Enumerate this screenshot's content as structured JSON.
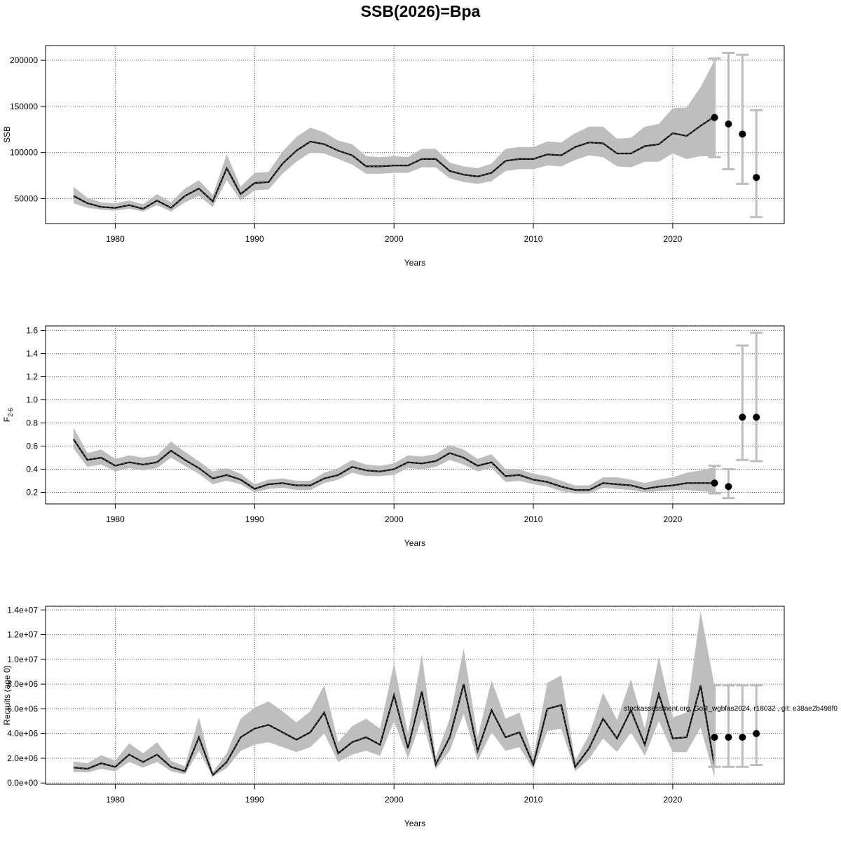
{
  "figure": {
    "title": "SSB(2026)=Bpa",
    "watermark": "stockassessment.org, GoR_wgbfas2024, r18032 , git: e38ae2b498f0"
  },
  "colors": {
    "band": "#bebebe",
    "line": "#000000",
    "grid": "#555555",
    "errorbar": "#bdbdbd"
  },
  "chart_data": [
    {
      "type": "line",
      "ylabel": "SSB",
      "xlabel": "Years",
      "xlim": [
        1975,
        2028
      ],
      "ylim": [
        23000,
        216000
      ],
      "xticks": [
        1980,
        1990,
        2000,
        2010,
        2020
      ],
      "yticks": [
        50000,
        100000,
        150000,
        200000
      ],
      "ytick_labels": [
        "50000",
        "100000",
        "150000",
        "200000"
      ],
      "grid": true,
      "series": [
        {
          "x": [
            1977,
            1978,
            1979,
            1980,
            1981,
            1982,
            1983,
            1984,
            1985,
            1986,
            1987,
            1988,
            1989,
            1990,
            1991,
            1992,
            1993,
            1994,
            1995,
            1996,
            1997,
            1998,
            1999,
            2000,
            2001,
            2002,
            2003,
            2004,
            2005,
            2006,
            2007,
            2008,
            2009,
            2010,
            2011,
            2012,
            2013,
            2014,
            2015,
            2016,
            2017,
            2018,
            2019,
            2020,
            2021,
            2022,
            2023
          ],
          "values": [
            53000,
            45000,
            41000,
            40000,
            43000,
            39000,
            48000,
            40000,
            53000,
            61000,
            47000,
            83000,
            55000,
            67000,
            68000,
            88000,
            102000,
            112000,
            109000,
            102000,
            97000,
            85000,
            85000,
            86000,
            86000,
            93000,
            93000,
            80000,
            76000,
            74000,
            78000,
            91000,
            93000,
            93000,
            98000,
            97000,
            106000,
            111000,
            110000,
            99000,
            99000,
            107000,
            109000,
            121000,
            118000,
            129000,
            139000
          ],
          "lower": [
            45000,
            40000,
            38000,
            37000,
            39000,
            36000,
            43000,
            36000,
            46000,
            53000,
            41000,
            70000,
            48000,
            59000,
            60000,
            77000,
            90000,
            100000,
            99000,
            93000,
            87000,
            77000,
            77000,
            78000,
            78000,
            84000,
            84000,
            72000,
            68000,
            66000,
            69000,
            80000,
            82000,
            82000,
            86000,
            85000,
            92000,
            97000,
            95000,
            85000,
            84000,
            90000,
            90000,
            99000,
            93000,
            96000,
            96000
          ],
          "upper": [
            63000,
            51000,
            46000,
            45000,
            48000,
            44000,
            55000,
            46000,
            61000,
            70000,
            54000,
            98000,
            63000,
            78000,
            79000,
            101000,
            117000,
            127000,
            122000,
            113000,
            109000,
            96000,
            95000,
            96000,
            95000,
            104000,
            104000,
            89000,
            85000,
            83000,
            88000,
            104000,
            106000,
            106000,
            112000,
            111000,
            121000,
            128000,
            128000,
            115000,
            116000,
            128000,
            131000,
            148000,
            149000,
            171000,
            200000
          ]
        }
      ],
      "projections": [
        {
          "x": 2023,
          "value": 138000,
          "lower": 95000,
          "upper": 202000
        },
        {
          "x": 2024,
          "value": 131000,
          "lower": 82000,
          "upper": 208000
        },
        {
          "x": 2025,
          "value": 120000,
          "lower": 66000,
          "upper": 206000
        },
        {
          "x": 2026,
          "value": 73000,
          "lower": 30000,
          "upper": 146000
        }
      ]
    },
    {
      "type": "line",
      "ylabel": "F",
      "ylabel_sub": "2-6",
      "xlabel": "Years",
      "xlim": [
        1975,
        2028
      ],
      "ylim": [
        0.1,
        1.64
      ],
      "xticks": [
        1980,
        1990,
        2000,
        2010,
        2020
      ],
      "yticks": [
        0.2,
        0.4,
        0.6,
        0.8,
        1.0,
        1.2,
        1.4,
        1.6
      ],
      "ytick_labels": [
        "0.2",
        "0.4",
        "0.6",
        "0.8",
        "1.0",
        "1.2",
        "1.4",
        "1.6"
      ],
      "grid": true,
      "series": [
        {
          "x": [
            1977,
            1978,
            1979,
            1980,
            1981,
            1982,
            1983,
            1984,
            1985,
            1986,
            1987,
            1988,
            1989,
            1990,
            1991,
            1992,
            1993,
            1994,
            1995,
            1996,
            1997,
            1998,
            1999,
            2000,
            2001,
            2002,
            2003,
            2004,
            2005,
            2006,
            2007,
            2008,
            2009,
            2010,
            2011,
            2012,
            2013,
            2014,
            2015,
            2016,
            2017,
            2018,
            2019,
            2020,
            2021,
            2022,
            2023
          ],
          "values": [
            0.66,
            0.48,
            0.5,
            0.43,
            0.46,
            0.44,
            0.46,
            0.56,
            0.48,
            0.41,
            0.32,
            0.35,
            0.31,
            0.23,
            0.27,
            0.28,
            0.26,
            0.26,
            0.32,
            0.35,
            0.42,
            0.39,
            0.38,
            0.4,
            0.46,
            0.45,
            0.47,
            0.54,
            0.5,
            0.43,
            0.46,
            0.34,
            0.35,
            0.31,
            0.29,
            0.25,
            0.22,
            0.22,
            0.28,
            0.27,
            0.26,
            0.23,
            0.25,
            0.26,
            0.28,
            0.28,
            0.28
          ],
          "lower": [
            0.58,
            0.42,
            0.44,
            0.38,
            0.41,
            0.39,
            0.41,
            0.5,
            0.43,
            0.36,
            0.27,
            0.3,
            0.27,
            0.2,
            0.23,
            0.24,
            0.22,
            0.22,
            0.28,
            0.31,
            0.37,
            0.34,
            0.34,
            0.35,
            0.41,
            0.4,
            0.42,
            0.48,
            0.44,
            0.38,
            0.41,
            0.29,
            0.3,
            0.27,
            0.25,
            0.21,
            0.19,
            0.19,
            0.24,
            0.23,
            0.22,
            0.2,
            0.21,
            0.22,
            0.22,
            0.21,
            0.2
          ],
          "upper": [
            0.76,
            0.54,
            0.57,
            0.49,
            0.52,
            0.5,
            0.52,
            0.64,
            0.55,
            0.47,
            0.38,
            0.41,
            0.36,
            0.27,
            0.31,
            0.32,
            0.3,
            0.3,
            0.37,
            0.41,
            0.48,
            0.44,
            0.43,
            0.45,
            0.52,
            0.51,
            0.53,
            0.61,
            0.57,
            0.49,
            0.53,
            0.4,
            0.4,
            0.36,
            0.34,
            0.3,
            0.26,
            0.26,
            0.33,
            0.33,
            0.31,
            0.28,
            0.31,
            0.33,
            0.37,
            0.39,
            0.42
          ]
        }
      ],
      "projections": [
        {
          "x": 2023,
          "value": 0.28,
          "lower": 0.19,
          "upper": 0.43
        },
        {
          "x": 2024,
          "value": 0.25,
          "lower": 0.15,
          "upper": 0.4
        },
        {
          "x": 2025,
          "value": 0.85,
          "lower": 0.48,
          "upper": 1.47
        },
        {
          "x": 2026,
          "value": 0.85,
          "lower": 0.47,
          "upper": 1.58
        }
      ]
    },
    {
      "type": "line",
      "ylabel": "Recruits (age 0)",
      "xlabel": "Years",
      "xlim": [
        1975,
        2028
      ],
      "ylim": [
        -100000,
        14300000
      ],
      "xticks": [
        1980,
        1990,
        2000,
        2010,
        2020
      ],
      "yticks": [
        0,
        2000000,
        4000000,
        6000000,
        8000000,
        10000000,
        12000000,
        14000000
      ],
      "ytick_labels": [
        "0.0e+00",
        "2.0e+06",
        "4.0e+06",
        "6.0e+06",
        "8.0e+06",
        "1.0e+07",
        "1.2e+07",
        "1.4e+07"
      ],
      "grid": true,
      "series": [
        {
          "x": [
            1977,
            1978,
            1979,
            1980,
            1981,
            1982,
            1983,
            1984,
            1985,
            1986,
            1987,
            1988,
            1989,
            1990,
            1991,
            1992,
            1993,
            1994,
            1995,
            1996,
            1997,
            1998,
            1999,
            2000,
            2001,
            2002,
            2003,
            2004,
            2005,
            2006,
            2007,
            2008,
            2009,
            2010,
            2011,
            2012,
            2013,
            2014,
            2015,
            2016,
            2017,
            2018,
            2019,
            2020,
            2021,
            2022,
            2023
          ],
          "values": [
            1250000,
            1150000,
            1600000,
            1300000,
            2300000,
            1700000,
            2300000,
            1300000,
            950000,
            3700000,
            650000,
            1700000,
            3700000,
            4400000,
            4700000,
            4100000,
            3500000,
            4100000,
            5700000,
            2400000,
            3300000,
            3700000,
            3100000,
            7100000,
            2800000,
            7400000,
            1500000,
            3700000,
            8000000,
            2600000,
            5900000,
            3700000,
            4100000,
            1500000,
            6000000,
            6300000,
            1300000,
            2800000,
            5200000,
            3600000,
            5900000,
            3100000,
            7200000,
            3600000,
            3700000,
            7900000,
            1300000
          ],
          "lower": [
            900000,
            850000,
            1150000,
            950000,
            1700000,
            1250000,
            1700000,
            950000,
            700000,
            2600000,
            500000,
            1200000,
            2600000,
            3100000,
            3300000,
            2900000,
            2500000,
            2900000,
            4000000,
            1700000,
            2300000,
            2600000,
            2200000,
            5000000,
            2000000,
            5200000,
            1100000,
            2600000,
            5600000,
            1800000,
            4100000,
            2600000,
            2900000,
            1100000,
            4200000,
            4400000,
            950000,
            1950000,
            3600000,
            2500000,
            4100000,
            2200000,
            5000000,
            2500000,
            2500000,
            4500000,
            450000
          ],
          "upper": [
            1750000,
            1600000,
            2250000,
            1800000,
            3200000,
            2400000,
            3300000,
            1800000,
            1350000,
            5300000,
            900000,
            2400000,
            5200000,
            6100000,
            6600000,
            5800000,
            4900000,
            5800000,
            7900000,
            3300000,
            4600000,
            5200000,
            4400000,
            9700000,
            4000000,
            10400000,
            2100000,
            5200000,
            10900000,
            3700000,
            8300000,
            5200000,
            5700000,
            2100000,
            8100000,
            8700000,
            1800000,
            3900000,
            7300000,
            5100000,
            8400000,
            4400000,
            10200000,
            5300000,
            5700000,
            13900000,
            7800000
          ]
        }
      ],
      "projections": [
        {
          "x": 2023,
          "value": 3700000,
          "lower": 1300000,
          "upper": 7900000
        },
        {
          "x": 2024,
          "value": 3700000,
          "lower": 1300000,
          "upper": 7900000
        },
        {
          "x": 2025,
          "value": 3700000,
          "lower": 1300000,
          "upper": 7900000
        },
        {
          "x": 2026,
          "value": 4000000,
          "lower": 1450000,
          "upper": 7900000
        }
      ]
    }
  ]
}
